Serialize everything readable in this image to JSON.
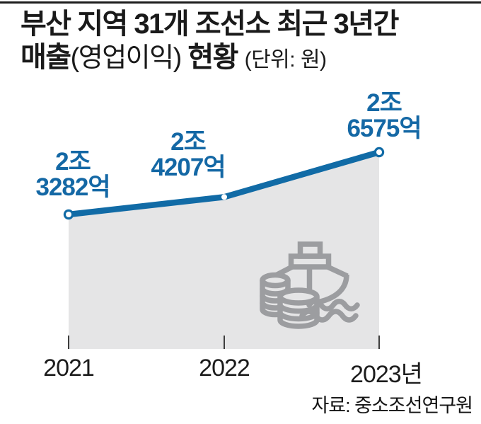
{
  "title": {
    "line1": "부산 지역 31개 조선소 최근 3년간",
    "line2_sales": "매출",
    "line2_profit_paren": "(영업이익)",
    "line2_status": " 현황 ",
    "line2_unit": "(단위: 원)"
  },
  "chart_data": {
    "type": "area",
    "title": "부산 지역 31개 조선소 최근 3년간 매출(영업이익) 현황",
    "unit_note": "단위: 원",
    "categories": [
      "2021",
      "2022",
      "2023년"
    ],
    "series": [
      {
        "name": "매출",
        "values_cho_won": [
          2.3282,
          2.4207,
          2.6575
        ],
        "values_display": [
          "2조 3282억",
          "2조 4207억",
          "2조 6575억"
        ]
      }
    ],
    "point_labels": [
      [
        "2조",
        "3282억"
      ],
      [
        "2조",
        "4207억"
      ],
      [
        "2조",
        "6575억"
      ]
    ],
    "ylim_cho_won": [
      0,
      2.7
    ],
    "grid": false,
    "legend": false
  },
  "icon": {
    "name": "ship-and-coins",
    "color": "#9c9da0"
  },
  "source_credit": "자료: 중소조선연구원",
  "colors": {
    "accent_blue": "#116ba6",
    "label_blue": "#1468a5",
    "area_gray": "#e5e5e6",
    "icon_gray": "#9c9da0",
    "text_dark": "#1a1a1a"
  }
}
